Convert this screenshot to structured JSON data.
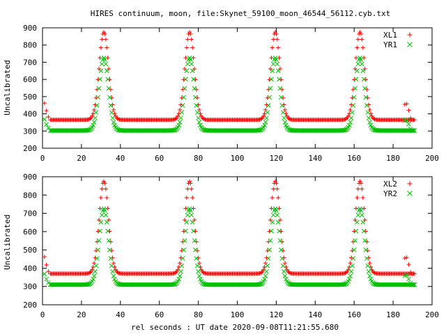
{
  "chart_data": {
    "type": "scatter",
    "title": "HIRES continuum, moon, file:Skynet_59100_moon_46544_56112.cyb.txt",
    "xlabel": "rel seconds : UT date 2020-09-08T11:21:55.680",
    "xlim": [
      0,
      200
    ],
    "xticks": [
      0,
      20,
      40,
      60,
      80,
      100,
      120,
      140,
      160,
      180,
      200
    ],
    "grid": false,
    "legend_position": "top-right",
    "colors": {
      "series_a": "#ff0000",
      "series_b": "#00c000"
    },
    "panels": [
      {
        "ylabel": "Uncalibrated",
        "ylim": [
          200,
          900
        ],
        "yticks": [
          200,
          300,
          400,
          500,
          600,
          700,
          800,
          900
        ],
        "series": [
          {
            "name": "XL1",
            "marker": "+",
            "color": "#ff0000",
            "baseline": 365,
            "peak": 875,
            "peaks": [
              31.5,
              75.5,
              119.5,
              163
            ],
            "start": [
              [
                1,
                462
              ],
              [
                2,
                418
              ],
              [
                3,
                382
              ]
            ],
            "end": [
              [
                186,
                455
              ],
              [
                187,
                458
              ],
              [
                188,
                420
              ],
              [
                189,
                375
              ],
              [
                190,
                365
              ]
            ]
          },
          {
            "name": "YR1",
            "marker": "x",
            "color": "#00c000",
            "baseline": 303,
            "peak": 725,
            "peaks": [
              31.5,
              75.5,
              119.5,
              163
            ],
            "start": [
              [
                1,
                368
              ],
              [
                2,
                338
              ],
              [
                3,
                318
              ]
            ],
            "end": [
              [
                186,
                360
              ],
              [
                187,
                362
              ],
              [
                188,
                340
              ],
              [
                189,
                312
              ],
              [
                190,
                302
              ]
            ]
          }
        ]
      },
      {
        "ylabel": "Uncalibrated",
        "ylim": [
          200,
          900
        ],
        "yticks": [
          200,
          300,
          400,
          500,
          600,
          700,
          800,
          900
        ],
        "series": [
          {
            "name": "XL2",
            "marker": "+",
            "color": "#ff0000",
            "baseline": 370,
            "peak": 875,
            "peaks": [
              31.5,
              75.5,
              119.5,
              163
            ],
            "start": [
              [
                1,
                462
              ],
              [
                2,
                418
              ],
              [
                3,
                382
              ]
            ],
            "end": [
              [
                186,
                455
              ],
              [
                187,
                458
              ],
              [
                188,
                420
              ],
              [
                189,
                378
              ],
              [
                190,
                368
              ]
            ]
          },
          {
            "name": "YR2",
            "marker": "x",
            "color": "#00c000",
            "baseline": 310,
            "peak": 725,
            "peaks": [
              31.5,
              75.5,
              119.5,
              163
            ],
            "start": [
              [
                1,
                368
              ],
              [
                2,
                340
              ],
              [
                3,
                320
              ]
            ],
            "end": [
              [
                186,
                360
              ],
              [
                187,
                362
              ],
              [
                188,
                340
              ],
              [
                189,
                318
              ],
              [
                190,
                308
              ]
            ]
          }
        ]
      }
    ]
  }
}
